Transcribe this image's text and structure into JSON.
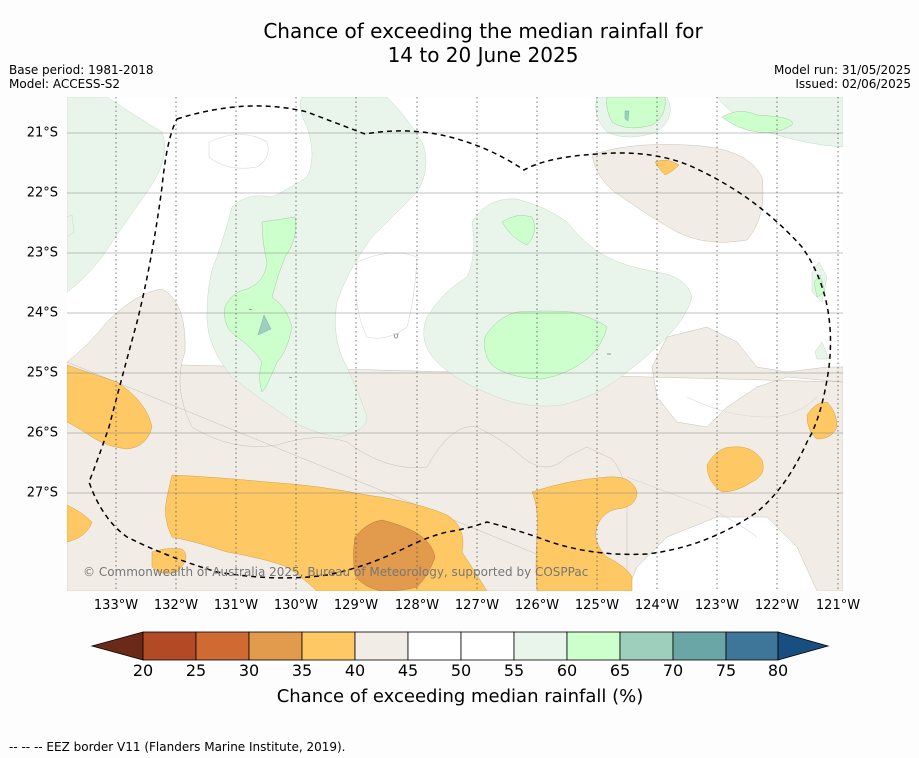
{
  "title": {
    "line1": "Chance of exceeding the median rainfall for",
    "line2": "14 to 20 June 2025"
  },
  "meta": {
    "base_period": "Base period: 1981-2018",
    "model": "Model: ACCESS-S2",
    "model_run": "Model run: 31/05/2025",
    "issued": "Issued: 02/06/2025"
  },
  "map": {
    "x_ticks": [
      "133°W",
      "132°W",
      "131°W",
      "130°W",
      "129°W",
      "128°W",
      "127°W",
      "126°W",
      "125°W",
      "124°W",
      "123°W",
      "122°W",
      "121°W"
    ],
    "y_ticks": [
      "21°S",
      "22°S",
      "23°S",
      "24°S",
      "25°S",
      "26°S",
      "27°S"
    ],
    "copyright": "© Commonwealth of Australia 2025, Bureau of Meteorology, supported by COSPPac"
  },
  "colorbar": {
    "ticks": [
      "20",
      "25",
      "30",
      "35",
      "40",
      "45",
      "50",
      "55",
      "60",
      "65",
      "70",
      "75",
      "80"
    ],
    "label": "Chance of exceeding median rainfall (%)",
    "colors": {
      "below20": "#6b2a17",
      "20-25": "#b34a26",
      "25-30": "#cf6a33",
      "30-35": "#e29a4c",
      "35-40": "#fec964",
      "40-45": "#f1ede6",
      "45-50": "#ffffff",
      "50-55": "#ffffff",
      "55-60": "#e9f5ea",
      "60-65": "#ccffcc",
      "65-70": "#9ecfbc",
      "70-75": "#6aa6a6",
      "75-80": "#3d7699",
      "above80": "#194e80"
    }
  },
  "footnote": "--  --  -- EEZ border V11 (Flanders Marine Institute, 2019)."
}
